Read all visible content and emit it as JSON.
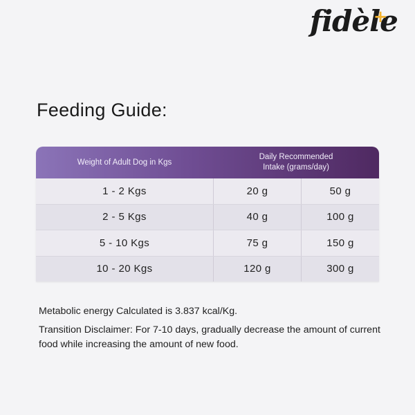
{
  "brand": {
    "name": "fidèle",
    "plus": "+"
  },
  "title": "Feeding Guide:",
  "table": {
    "header_weight": "Weight of Adult Dog in Kgs",
    "header_intake": "Daily Recommended Intake (grams/day)",
    "rows": [
      {
        "weight": "1 - 2 Kgs",
        "min": "20 g",
        "max": "50 g"
      },
      {
        "weight": "2 - 5 Kgs",
        "min": "40 g",
        "max": "100 g"
      },
      {
        "weight": "5 - 10 Kgs",
        "min": "75 g",
        "max": "150 g"
      },
      {
        "weight": "10 - 20 Kgs",
        "min": "120 g",
        "max": "300 g"
      }
    ]
  },
  "notes": {
    "energy": "Metabolic energy Calculated is 3.837 kcal/Kg.",
    "disclaimer": "Transition Disclaimer: For 7-10 days, gradually decrease the amount of current food while increasing the amount of new food."
  },
  "colors": {
    "header_gradient_start": "#8b74b8",
    "header_gradient_end": "#4f2961",
    "logo_accent": "#f2b230"
  }
}
